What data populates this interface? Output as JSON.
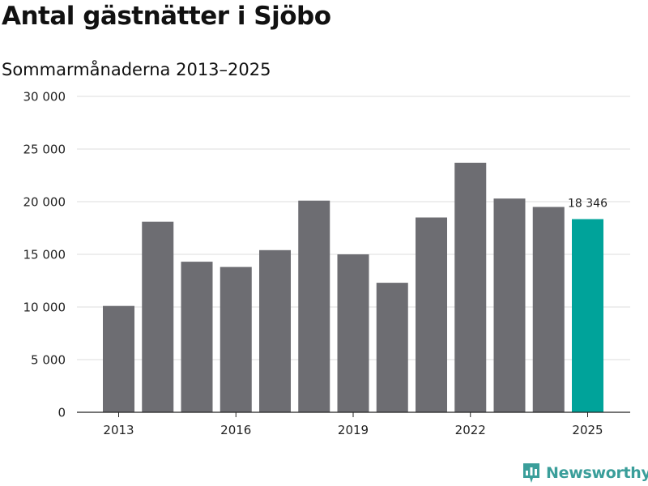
{
  "header": {
    "title": "Antal gästnätter i Sjöbo",
    "subtitle": "Sommarmånaderna 2013–2025"
  },
  "brand": {
    "name": "Newsworthy",
    "icon": "newsworthy-logo-icon",
    "color": "#3a9e9a"
  },
  "chart_data": {
    "type": "bar",
    "title": "Antal gästnätter i Sjöbo",
    "subtitle": "Sommarmånaderna 2013–2025",
    "categories": [
      "2013",
      "2014",
      "2015",
      "2016",
      "2017",
      "2018",
      "2019",
      "2020",
      "2021",
      "2022",
      "2023",
      "2024",
      "2025"
    ],
    "values": [
      10100,
      18100,
      14300,
      13800,
      15400,
      20100,
      15000,
      12300,
      18500,
      23700,
      20300,
      19500,
      18346
    ],
    "x_tick_labels": [
      "2013",
      "2016",
      "2019",
      "2022",
      "2025"
    ],
    "y_ticks": [
      0,
      5000,
      10000,
      15000,
      20000,
      25000,
      30000
    ],
    "y_tick_labels": [
      "0",
      "5 000",
      "10 000",
      "15 000",
      "20 000",
      "25 000",
      "30 000"
    ],
    "ylim": [
      0,
      30000
    ],
    "grid": true,
    "bar_color": "#6d6d72",
    "highlight_color": "#00a39a",
    "highlight_category": "2025",
    "data_label": {
      "category": "2025",
      "text": "18 346"
    }
  }
}
